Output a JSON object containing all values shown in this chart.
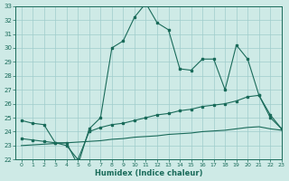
{
  "xlabel": "Humidex (Indice chaleur)",
  "background_color": "#ceeae6",
  "grid_color": "#a0cccc",
  "line_color": "#1a6b5a",
  "x_values": [
    0,
    1,
    2,
    3,
    4,
    5,
    6,
    7,
    8,
    9,
    10,
    11,
    12,
    13,
    14,
    15,
    16,
    17,
    18,
    19,
    20,
    21,
    22,
    23
  ],
  "series1": [
    24.8,
    24.6,
    24.5,
    23.2,
    23.2,
    21.6,
    24.2,
    25.0,
    30.0,
    30.5,
    32.2,
    33.2,
    31.8,
    31.3,
    28.5,
    28.4,
    29.2,
    29.2,
    27.0,
    30.2,
    29.2,
    26.6,
    25.2,
    24.2
  ],
  "series2": [
    23.5,
    23.4,
    23.3,
    23.2,
    23.0,
    22.0,
    24.0,
    24.3,
    24.5,
    24.6,
    24.8,
    25.0,
    25.2,
    25.3,
    25.5,
    25.6,
    25.8,
    25.9,
    26.0,
    26.2,
    26.5,
    26.6,
    25.0,
    24.2
  ],
  "series3": [
    23.0,
    23.05,
    23.1,
    23.15,
    23.2,
    23.25,
    23.3,
    23.35,
    23.45,
    23.5,
    23.6,
    23.65,
    23.7,
    23.8,
    23.85,
    23.9,
    24.0,
    24.05,
    24.1,
    24.2,
    24.3,
    24.35,
    24.2,
    24.1
  ],
  "ylim": [
    22,
    33
  ],
  "xlim": [
    -0.5,
    23
  ],
  "yticks": [
    22,
    23,
    24,
    25,
    26,
    27,
    28,
    29,
    30,
    31,
    32,
    33
  ],
  "xticks": [
    0,
    1,
    2,
    3,
    4,
    5,
    6,
    7,
    8,
    9,
    10,
    11,
    12,
    13,
    14,
    15,
    16,
    17,
    18,
    19,
    20,
    21,
    22,
    23
  ]
}
